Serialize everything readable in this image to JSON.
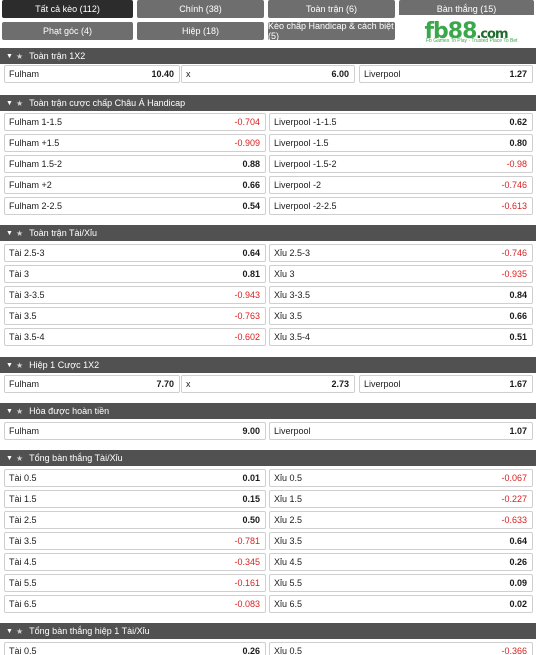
{
  "tabs": [
    {
      "label": "Tất cả kèo (112)"
    },
    {
      "label": "Chính (38)"
    },
    {
      "label": "Toàn trận (6)"
    },
    {
      "label": "Bàn thắng (15)"
    },
    {
      "label": "Phạt góc (4)"
    },
    {
      "label": "Hiệp (18)"
    },
    {
      "label": "Kèo chấp Handicap & cách biệt (5)"
    }
  ],
  "logo": {
    "text": "fb88",
    "suffix": ".com",
    "tagline": "Fb Games To Play · Trusted Place To Bet"
  },
  "sections": [
    {
      "title": "Toàn trận 1X2",
      "rows": [
        [
          {
            "label": "Fulham",
            "value": "10.40"
          },
          {
            "label": "x",
            "value": "6.00"
          },
          {
            "label": "Liverpool",
            "value": "1.27"
          }
        ]
      ]
    },
    {
      "title": "Toàn trận cược chấp Châu Á Handicap",
      "rows": [
        [
          {
            "label": "Fulham 1-1.5",
            "value": "-0.704"
          },
          {
            "label": "Liverpool -1-1.5",
            "value": "0.62"
          }
        ],
        [
          {
            "label": "Fulham +1.5",
            "value": "-0.909"
          },
          {
            "label": "Liverpool -1.5",
            "value": "0.80"
          }
        ],
        [
          {
            "label": "Fulham 1.5-2",
            "value": "0.88"
          },
          {
            "label": "Liverpool -1.5-2",
            "value": "-0.98"
          }
        ],
        [
          {
            "label": "Fulham +2",
            "value": "0.66"
          },
          {
            "label": "Liverpool -2",
            "value": "-0.746"
          }
        ],
        [
          {
            "label": "Fulham 2-2.5",
            "value": "0.54"
          },
          {
            "label": "Liverpool -2-2.5",
            "value": "-0.613"
          }
        ]
      ]
    },
    {
      "title": "Toàn trận Tài/Xỉu",
      "rows": [
        [
          {
            "label": "Tài 2.5-3",
            "value": "0.64"
          },
          {
            "label": "Xỉu 2.5-3",
            "value": "-0.746"
          }
        ],
        [
          {
            "label": "Tài 3",
            "value": "0.81"
          },
          {
            "label": "Xỉu 3",
            "value": "-0.935"
          }
        ],
        [
          {
            "label": "Tài 3-3.5",
            "value": "-0.943"
          },
          {
            "label": "Xỉu 3-3.5",
            "value": "0.84"
          }
        ],
        [
          {
            "label": "Tài 3.5",
            "value": "-0.763"
          },
          {
            "label": "Xỉu 3.5",
            "value": "0.66"
          }
        ],
        [
          {
            "label": "Tài 3.5-4",
            "value": "-0.602"
          },
          {
            "label": "Xỉu 3.5-4",
            "value": "0.51"
          }
        ]
      ]
    },
    {
      "title": "Hiệp 1 Cược 1X2",
      "rows": [
        [
          {
            "label": "Fulham",
            "value": "7.70"
          },
          {
            "label": "x",
            "value": "2.73"
          },
          {
            "label": "Liverpool",
            "value": "1.67"
          }
        ]
      ]
    },
    {
      "title": "Hòa được hoàn tiền",
      "rows": [
        [
          {
            "label": "Fulham",
            "value": "9.00"
          },
          {
            "label": "Liverpool",
            "value": "1.07"
          }
        ]
      ]
    },
    {
      "title": "Tổng bàn thắng Tài/Xỉu",
      "rows": [
        [
          {
            "label": "Tài 0.5",
            "value": "0.01"
          },
          {
            "label": "Xỉu 0.5",
            "value": "-0.067"
          }
        ],
        [
          {
            "label": "Tài 1.5",
            "value": "0.15"
          },
          {
            "label": "Xỉu 1.5",
            "value": "-0.227"
          }
        ],
        [
          {
            "label": "Tài 2.5",
            "value": "0.50"
          },
          {
            "label": "Xỉu 2.5",
            "value": "-0.633"
          }
        ],
        [
          {
            "label": "Tài 3.5",
            "value": "-0.781"
          },
          {
            "label": "Xỉu 3.5",
            "value": "0.64"
          }
        ],
        [
          {
            "label": "Tài 4.5",
            "value": "-0.345"
          },
          {
            "label": "Xỉu 4.5",
            "value": "0.26"
          }
        ],
        [
          {
            "label": "Tài 5.5",
            "value": "-0.161"
          },
          {
            "label": "Xỉu 5.5",
            "value": "0.09"
          }
        ],
        [
          {
            "label": "Tài 6.5",
            "value": "-0.083"
          },
          {
            "label": "Xỉu 6.5",
            "value": "0.02"
          }
        ]
      ]
    },
    {
      "title": "Tổng bàn thắng hiệp 1 Tài/Xỉu",
      "rows": [
        [
          {
            "label": "Tài 0.5",
            "value": "0.26"
          },
          {
            "label": "Xỉu 0.5",
            "value": "-0.366"
          }
        ]
      ]
    }
  ],
  "colors": {
    "tab": "#6e6e6e",
    "tab_active": "#2c2c2c",
    "header": "#515151",
    "negative": "#d92020",
    "brand": "#3aa84a"
  },
  "icons": {
    "collapse": "caret-down-icon",
    "favorite": "star-icon"
  }
}
